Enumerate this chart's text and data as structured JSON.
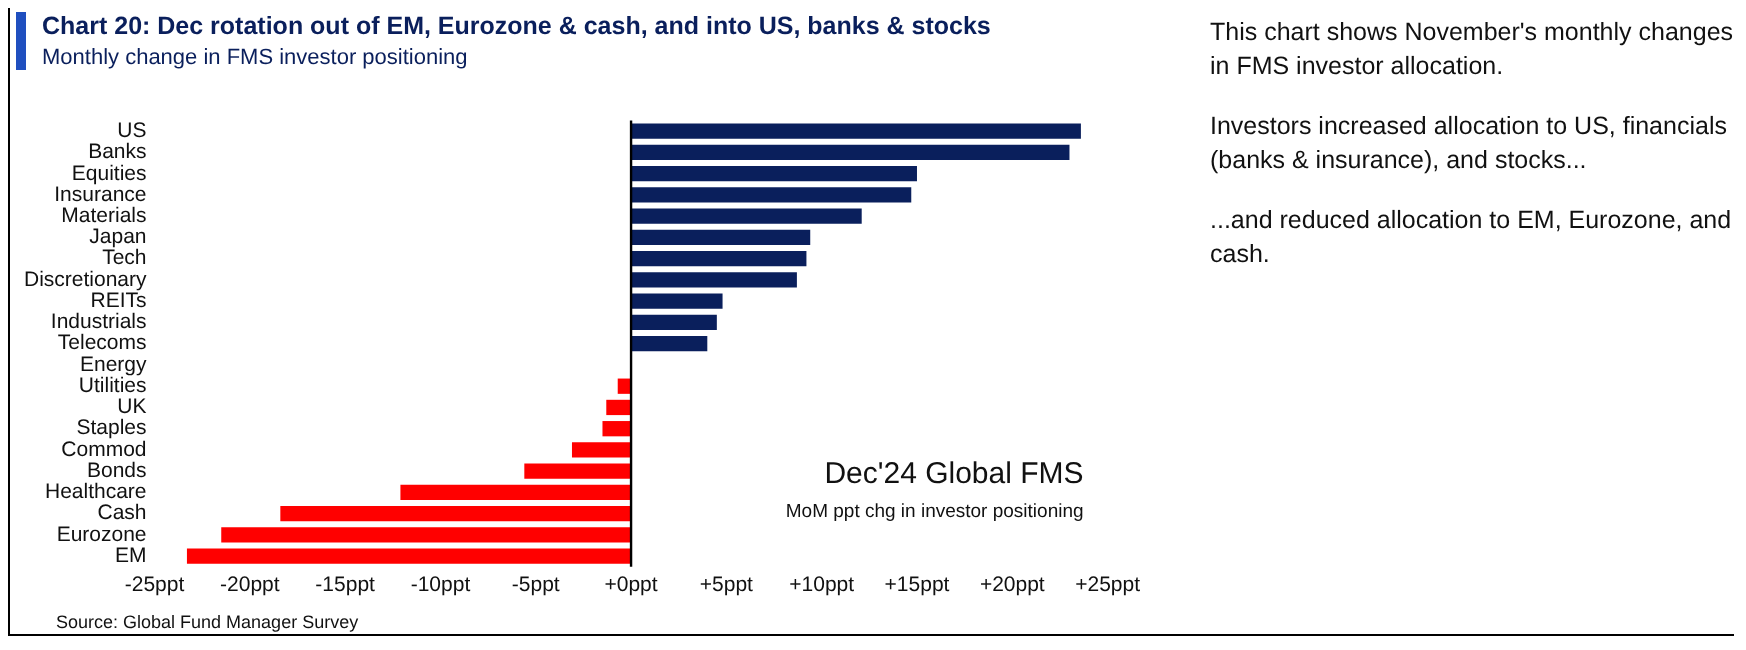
{
  "chart_data": {
    "type": "bar",
    "orientation": "horizontal",
    "title": "Chart 20: Dec rotation out of EM, Eurozone & cash, and into US, banks & stocks",
    "subtitle": "Monthly change in FMS investor positioning",
    "categories": [
      "US",
      "Banks",
      "Equities",
      "Insurance",
      "Materials",
      "Japan",
      "Tech",
      "Discretionary",
      "REITs",
      "Industrials",
      "Telecoms",
      "Energy",
      "Utilities",
      "UK",
      "Staples",
      "Commod",
      "Bonds",
      "Healthcare",
      "Cash",
      "Eurozone",
      "EM"
    ],
    "values": [
      23.6,
      23.0,
      15.0,
      14.7,
      12.1,
      9.4,
      9.2,
      8.7,
      4.8,
      4.5,
      4.0,
      0,
      -0.7,
      -1.3,
      -1.5,
      -3.1,
      -5.6,
      -12.1,
      -18.4,
      -21.5,
      -23.3
    ],
    "colors": [
      "#0a1f5c",
      "#0a1f5c",
      "#0a1f5c",
      "#0a1f5c",
      "#0a1f5c",
      "#0a1f5c",
      "#0a1f5c",
      "#0a1f5c",
      "#0a1f5c",
      "#0a1f5c",
      "#0a1f5c",
      "#0a1f5c",
      "#ff0000",
      "#ff0000",
      "#ff0000",
      "#ff0000",
      "#ff0000",
      "#ff0000",
      "#ff0000",
      "#ff0000",
      "#ff0000"
    ],
    "xlim": [
      -25,
      25
    ],
    "xticks": [
      {
        "value": -25,
        "label": "-25ppt"
      },
      {
        "value": -20,
        "label": "-20ppt"
      },
      {
        "value": -15,
        "label": "-15ppt"
      },
      {
        "value": -10,
        "label": "-10ppt"
      },
      {
        "value": -5,
        "label": "-5ppt"
      },
      {
        "value": 0,
        "label": "+0ppt"
      },
      {
        "value": 5,
        "label": "+5ppt"
      },
      {
        "value": 10,
        "label": "+10ppt"
      },
      {
        "value": 15,
        "label": "+15ppt"
      },
      {
        "value": 20,
        "label": "+20ppt"
      },
      {
        "value": 25,
        "label": "+25ppt"
      }
    ],
    "ref_lines": [
      {
        "axis": "x",
        "value": 0,
        "color": "#000000"
      }
    ],
    "legend": false,
    "annotations": [
      "Dec'24 Global FMS",
      "MoM ppt chg in investor positioning",
      "Source: Global Fund Manager Survey",
      "This chart shows November's monthly changes in FMS investor allocation.",
      "Investors increased allocation to US, financials (banks & insurance), and stocks...",
      "...and reduced allocation to EM, Eurozone, and cash."
    ]
  }
}
